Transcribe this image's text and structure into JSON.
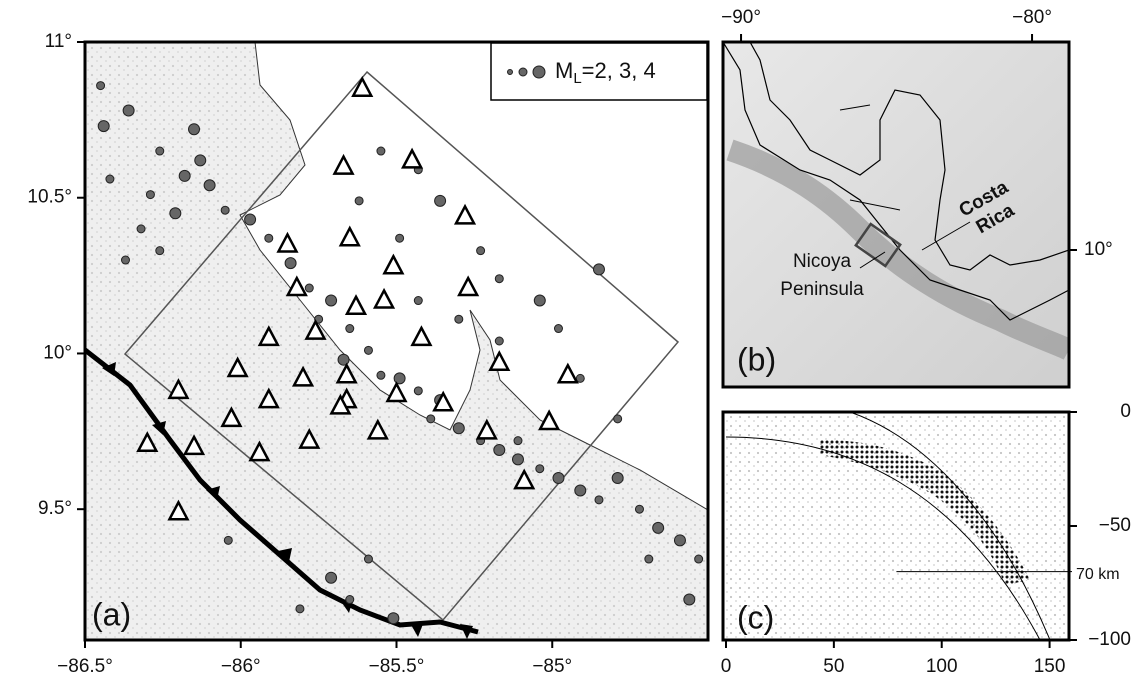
{
  "map_a": {
    "panel_label": "(a)",
    "legend": {
      "symbol": "M",
      "sub": "L",
      "text": "=2, 3, 4"
    },
    "xlim": [
      -86.5,
      -84.5
    ],
    "ylim": [
      9.08,
      11
    ],
    "xticks": [
      {
        "value": -86.5,
        "label": "−86.5°"
      },
      {
        "value": -86,
        "label": "−86°"
      },
      {
        "value": -85.5,
        "label": "−85.5°"
      },
      {
        "value": -85,
        "label": "−85°"
      }
    ],
    "yticks": [
      {
        "value": 11,
        "label": "11°"
      },
      {
        "value": 10.5,
        "label": "10.5°"
      },
      {
        "value": 10,
        "label": "10°"
      },
      {
        "value": 9.5,
        "label": "9.5°"
      }
    ],
    "quakes": {
      "lon": [
        -86.45,
        -86.36,
        -86.26,
        -86.18,
        -86.13,
        -86.29,
        -86.21,
        -86.32,
        -86.1,
        -86.37,
        -86.26,
        -86.15,
        -86.42,
        -86.05,
        -86.44,
        -85.97,
        -85.91,
        -85.84,
        -85.78,
        -85.71,
        -85.75,
        -85.65,
        -85.67,
        -85.59,
        -85.55,
        -85.49,
        -85.43,
        -85.36,
        -85.39,
        -85.3,
        -85.23,
        -85.17,
        -85.11,
        -85.04,
        -84.98,
        -84.91,
        -84.85,
        -84.79,
        -84.72,
        -84.66,
        -84.59,
        -84.53,
        -84.56,
        -84.69,
        -85.11,
        -85.55,
        -85.43,
        -85.36,
        -85.23,
        -85.17,
        -85.04,
        -84.98,
        -84.91,
        -84.79,
        -84.85,
        -85.49,
        -85.62,
        -85.43,
        -85.3,
        -85.17,
        -85.71,
        -85.65,
        -85.59,
        -85.81,
        -86.04,
        -85.51
      ],
      "lat": [
        10.86,
        10.78,
        10.65,
        10.57,
        10.62,
        10.51,
        10.45,
        10.4,
        10.54,
        10.3,
        10.33,
        10.72,
        10.56,
        10.46,
        10.73,
        10.43,
        10.37,
        10.29,
        10.21,
        10.17,
        10.11,
        10.08,
        9.98,
        10.01,
        9.93,
        9.92,
        9.88,
        9.85,
        9.79,
        9.76,
        9.72,
        9.69,
        9.66,
        9.63,
        9.6,
        9.56,
        9.53,
        9.6,
        9.5,
        9.44,
        9.4,
        9.34,
        9.21,
        9.34,
        9.72,
        10.65,
        10.59,
        10.49,
        10.33,
        10.24,
        10.17,
        10.08,
        9.92,
        9.79,
        10.27,
        10.37,
        10.49,
        10.17,
        10.11,
        10.04,
        9.28,
        9.21,
        9.34,
        9.18,
        9.4,
        9.15
      ],
      "mag": [
        3,
        4,
        3,
        4,
        4,
        3,
        4,
        3,
        4,
        3,
        3,
        4,
        3,
        3,
        4,
        4,
        3,
        4,
        3,
        4,
        3,
        3,
        4,
        3,
        3,
        4,
        3,
        4,
        3,
        4,
        3,
        4,
        4,
        3,
        4,
        4,
        3,
        4,
        3,
        4,
        4,
        3,
        4,
        3,
        3,
        3,
        3,
        4,
        3,
        3,
        4,
        3,
        3,
        3,
        4,
        3,
        3,
        3,
        3,
        3,
        4,
        3,
        3,
        3,
        3,
        4
      ]
    },
    "stations": {
      "lon": [
        -85.61,
        -85.67,
        -85.45,
        -85.28,
        -85.65,
        -85.85,
        -85.51,
        -85.82,
        -85.54,
        -85.63,
        -85.27,
        -85.76,
        -85.91,
        -85.42,
        -86.01,
        -85.66,
        -85.8,
        -85.17,
        -84.95,
        -86.2,
        -85.66,
        -85.35,
        -85.91,
        -85.5,
        -86.03,
        -85.68,
        -85.78,
        -86.15,
        -86.3,
        -85.94,
        -85.56,
        -85.21,
        -85.01,
        -85.09,
        -86.2
      ],
      "lat": [
        10.85,
        10.6,
        10.62,
        10.44,
        10.37,
        10.35,
        10.28,
        10.21,
        10.17,
        10.15,
        10.21,
        10.07,
        10.05,
        10.05,
        9.95,
        9.93,
        9.92,
        9.97,
        9.93,
        9.88,
        9.85,
        9.84,
        9.85,
        9.87,
        9.79,
        9.83,
        9.72,
        9.7,
        9.71,
        9.68,
        9.75,
        9.75,
        9.78,
        9.59,
        9.49
      ]
    }
  },
  "map_b": {
    "panel_label": "(b)",
    "country_label": [
      "Costa",
      "Rica"
    ],
    "inset_label": [
      "Nicoya",
      "Peninsula"
    ],
    "xlim": [
      -90.62,
      -78.73
    ],
    "ylim": [
      5.29,
      17.15
    ],
    "xticks": [
      {
        "value": -90,
        "label": "−90°"
      },
      {
        "value": -80,
        "label": "−80°"
      }
    ],
    "yticks": [
      {
        "value": 10,
        "label": "10°"
      }
    ]
  },
  "section_c": {
    "panel_label": "(c)",
    "xlim": [
      0,
      159
    ],
    "ylim": [
      -100,
      0
    ],
    "xticks": [
      0,
      50,
      100,
      150
    ],
    "yticks": [
      {
        "value": 0,
        "label": "0"
      },
      {
        "value": -50,
        "label": "−50"
      },
      {
        "value": -100,
        "label": "−100"
      }
    ],
    "depth_line": {
      "value": -70,
      "label": "70 km",
      "x0": 79
    }
  }
}
